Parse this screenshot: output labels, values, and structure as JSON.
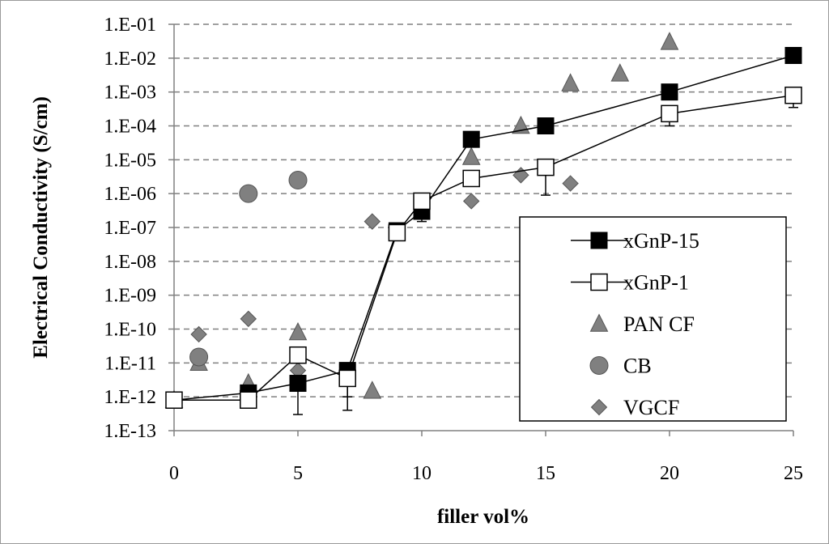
{
  "chart_data": {
    "type": "scatter",
    "title": "",
    "xlabel": "filler vol%",
    "ylabel": "Electrical Conductivity  (S/cm)",
    "xlim": [
      0,
      25
    ],
    "x_ticks": [
      "0",
      "5",
      "10",
      "15",
      "20",
      "25"
    ],
    "y_log_range_exponents": [
      -13,
      -1
    ],
    "y_ticks": [
      "1.E-01",
      "1.E-02",
      "1.E-03",
      "1.E-04",
      "1.E-05",
      "1.E-06",
      "1.E-07",
      "1.E-08",
      "1.E-09",
      "1.E-10",
      "1.E-11",
      "1.E-12",
      "1.E-13"
    ],
    "grid": "horizontal dashed",
    "legend_position": "bottom-right",
    "series": [
      {
        "name": "xGnP-15",
        "marker": "square-filled",
        "connected": true,
        "color": "#000000",
        "points": [
          {
            "x": 0,
            "y": 8e-13
          },
          {
            "x": 3,
            "y": 1.3e-12
          },
          {
            "x": 5,
            "y": 2.5e-12
          },
          {
            "x": 7,
            "y": 6e-12
          },
          {
            "x": 9,
            "y": 8e-08
          },
          {
            "x": 10,
            "y": 3e-07
          },
          {
            "x": 12,
            "y": 4e-05
          },
          {
            "x": 15,
            "y": 0.0001
          },
          {
            "x": 20,
            "y": 0.001
          },
          {
            "x": 25,
            "y": 0.012
          }
        ],
        "error_low": [
          {
            "x": 5,
            "y": 3e-13
          },
          {
            "x": 7,
            "y": 4e-13
          },
          {
            "x": 10,
            "y": 1.5e-07
          }
        ]
      },
      {
        "name": "xGnP-1",
        "marker": "square-open",
        "connected": true,
        "color": "#000000",
        "points": [
          {
            "x": 0,
            "y": 8e-13
          },
          {
            "x": 3,
            "y": 8e-13
          },
          {
            "x": 5,
            "y": 1.7e-11
          },
          {
            "x": 7,
            "y": 3.5e-12
          },
          {
            "x": 9,
            "y": 7e-08
          },
          {
            "x": 10,
            "y": 6e-07
          },
          {
            "x": 12,
            "y": 2.8e-06
          },
          {
            "x": 15,
            "y": 6e-06
          },
          {
            "x": 20,
            "y": 0.00023
          },
          {
            "x": 25,
            "y": 0.0008
          }
        ],
        "error_low": [
          {
            "x": 7,
            "y": 1e-12
          },
          {
            "x": 15,
            "y": 9e-07
          },
          {
            "x": 20,
            "y": 0.0001
          },
          {
            "x": 25,
            "y": 0.00035
          }
        ]
      },
      {
        "name": "PAN CF",
        "marker": "triangle",
        "connected": false,
        "color": "#808080",
        "points": [
          {
            "x": 0,
            "y": 8e-13
          },
          {
            "x": 1,
            "y": 1e-11
          },
          {
            "x": 3,
            "y": 2.5e-12
          },
          {
            "x": 5,
            "y": 8e-11
          },
          {
            "x": 8,
            "y": 1.5e-12
          },
          {
            "x": 12,
            "y": 1.2e-05
          },
          {
            "x": 14,
            "y": 0.0001
          },
          {
            "x": 16,
            "y": 0.0018
          },
          {
            "x": 18,
            "y": 0.0035
          },
          {
            "x": 20,
            "y": 0.03
          }
        ]
      },
      {
        "name": "CB",
        "marker": "circle",
        "connected": false,
        "color": "#808080",
        "points": [
          {
            "x": 1,
            "y": 1.5e-11
          },
          {
            "x": 3,
            "y": 1e-06
          },
          {
            "x": 5,
            "y": 2.5e-06
          }
        ]
      },
      {
        "name": "VGCF",
        "marker": "diamond",
        "connected": false,
        "color": "#808080",
        "points": [
          {
            "x": 0,
            "y": 8e-13
          },
          {
            "x": 1,
            "y": 7e-11
          },
          {
            "x": 3,
            "y": 2e-10
          },
          {
            "x": 5,
            "y": 6e-12
          },
          {
            "x": 8,
            "y": 1.5e-07
          },
          {
            "x": 12,
            "y": 6e-07
          },
          {
            "x": 14,
            "y": 3.5e-06
          },
          {
            "x": 16,
            "y": 2e-06
          }
        ]
      }
    ]
  }
}
